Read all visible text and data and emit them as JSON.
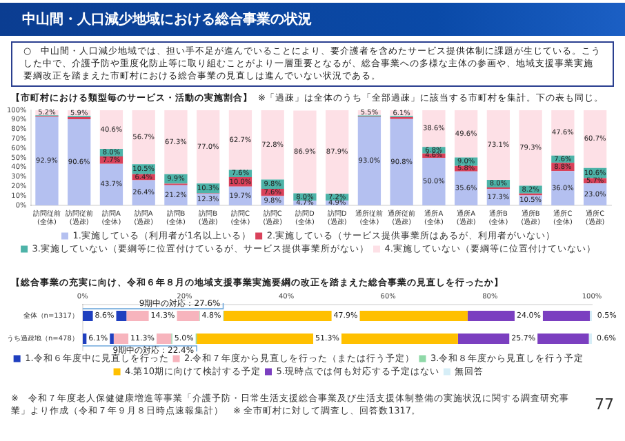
{
  "chart_data": [
    {
      "type": "other",
      "title": "中山間・人口減少地域における総合事業の状況",
      "annotations": [
        "○　中山間・人口減少地域では、担い手不足が進んでいることにより、要介護者を含めたサービス提供体制に課題が生じている。こうした中で、介護予防や重度化防止等に取り組むことがより一層重要となるが、総合事業への多様な主体の参画や、地域支援事業実施要綱改正を踏まえた市町村における総合事業の見直しは進んでいない状況である。"
      ]
    },
    {
      "type": "bar",
      "stacked": true,
      "title": "【市町村における類型毎のサービス・活動の実施割合】",
      "subtitle": "※「過疎」は全体のうち「全部過疎」に該当する市町村を集計。下の表も同じ。",
      "categories": [
        "訪問従前\n(全体)",
        "訪問従前\n(過疎)",
        "訪問A\n(全体)",
        "訪問A\n(過疎)",
        "訪問B\n(全体)",
        "訪問B\n(過疎)",
        "訪問C\n(全体)",
        "訪問C\n(過疎)",
        "訪問D\n(全体)",
        "訪問D\n(過疎)",
        "通所従前\n(全体)",
        "通所従前\n(過疎)",
        "通所A\n(全体)",
        "通所A\n(過疎)",
        "通所B\n(全体)",
        "通所B\n(過疎)",
        "通所C\n(全体)",
        "通所C\n(過疎)"
      ],
      "series": [
        {
          "name": "1.実施している（利用者が1名以上いる）",
          "color": "#b4c0f0",
          "values": [
            92.9,
            90.6,
            43.7,
            26.4,
            21.2,
            12.3,
            19.7,
            9.8,
            4.7,
            4.9,
            93.0,
            90.8,
            50.0,
            35.6,
            17.3,
            10.5,
            36.0,
            23.0
          ],
          "value_labels": [
            "92.9%",
            "90.6%",
            "43.7%",
            "26.4%",
            "21.2%",
            "12.3%",
            "19.7%",
            "9.8%",
            "4.7%",
            "4.9%",
            "93.0%",
            "90.8%",
            "50.0%",
            "35.6%",
            "17.3%",
            "10.5%",
            "36.0%",
            "23.0%"
          ]
        },
        {
          "name": "2.実施している（サービス提供事業所はあるが、利用者がいない）",
          "color": "#d9415a",
          "values": [
            1.0,
            2.2,
            7.7,
            6.4,
            1.6,
            0.4,
            10.0,
            7.6,
            null,
            0.0,
            0.5,
            2.0,
            4.6,
            5.8,
            1.6,
            2.0,
            8.8,
            5.7
          ],
          "value_labels": [
            null,
            null,
            "7.7%",
            "6.4%",
            null,
            null,
            "10.0%",
            "7.6%",
            null,
            null,
            null,
            null,
            "4.6%",
            "5.8%",
            null,
            null,
            "8.8%",
            "5.7%"
          ]
        },
        {
          "name": "3.実施していない（要綱等に位置付けているが、サービス提供事業所がない）",
          "color": "#4db3a8",
          "values": [
            0.9,
            1.3,
            8.0,
            10.5,
            9.9,
            10.3,
            7.6,
            9.8,
            8.0,
            7.2,
            1.0,
            1.1,
            6.8,
            9.0,
            8.0,
            8.2,
            7.6,
            10.6
          ],
          "value_labels": [
            null,
            null,
            "8.0%",
            "10.5%",
            "9.9%",
            "10.3%",
            "7.6%",
            "9.8%",
            "8.0%",
            "7.2%",
            null,
            null,
            "6.8%",
            "9.0%",
            "8.0%",
            "8.2%",
            "7.6%",
            "10.6%"
          ]
        },
        {
          "name": "4.実施していない（要綱等に位置付けていない）",
          "color": "#fde0e6",
          "values": [
            5.2,
            5.9,
            40.6,
            56.7,
            67.3,
            77.0,
            62.7,
            72.8,
            86.9,
            87.9,
            5.5,
            6.1,
            38.6,
            49.6,
            73.1,
            79.3,
            47.6,
            60.7
          ],
          "value_labels": [
            "5.2%",
            "5.9%",
            "40.6%",
            "56.7%",
            "67.3%",
            "77.0%",
            "62.7%",
            "72.8%",
            "86.9%",
            "87.9%",
            "5.5%",
            "6.1%",
            "38.6%",
            "49.6%",
            "73.1%",
            "79.3%",
            "47.6%",
            "60.7%"
          ]
        }
      ],
      "ylim": [
        0,
        100
      ],
      "yticks": [
        {
          "value": 0,
          "label": "0%"
        },
        {
          "value": 10,
          "label": "10%"
        },
        {
          "value": 20,
          "label": "20%"
        },
        {
          "value": 30,
          "label": "30%"
        },
        {
          "value": 40,
          "label": "40%"
        },
        {
          "value": 50,
          "label": "50%"
        },
        {
          "value": 60,
          "label": "60%"
        },
        {
          "value": 70,
          "label": "70%"
        },
        {
          "value": 80,
          "label": "80%"
        },
        {
          "value": 90,
          "label": "90%"
        },
        {
          "value": 100,
          "label": "100%"
        }
      ],
      "legend": "bottom"
    },
    {
      "type": "bar",
      "stacked": true,
      "orientation": "horizontal",
      "title": "【総合事業の充実に向け、令和６年８月の地域支援事業実施要綱の改正を踏まえた総合事業の見直しを行ったか】",
      "categories": [
        "全体（n=1317）",
        "うち過疎地（n=478）"
      ],
      "series": [
        {
          "name": "1.令和６年度中に見直しを行った",
          "color": "#1f3fbf",
          "values": [
            8.6,
            6.1
          ],
          "value_labels": [
            "8.6%",
            "6.1%"
          ]
        },
        {
          "name": "2.令和７年度から見直しを行った（または行う予定）",
          "color": "#f7b4bd",
          "values": [
            14.3,
            11.3
          ],
          "value_labels": [
            "14.3%",
            "11.3%"
          ]
        },
        {
          "name": "3.令和８年度から見直しを行う予定",
          "color": "#8fd9a8",
          "values": [
            4.8,
            5.0
          ],
          "value_labels": [
            "4.8%",
            "5.0%"
          ]
        },
        {
          "name": "4.第10期に向けて検討する予定",
          "color": "#ffc000",
          "values": [
            47.9,
            51.3
          ],
          "value_labels": [
            "47.9%",
            "51.3%"
          ]
        },
        {
          "name": "5.現時点では何も対応する予定はない",
          "color": "#7b3fc0",
          "values": [
            24.0,
            25.7
          ],
          "value_labels": [
            "24.0%",
            "25.7%"
          ]
        },
        {
          "name": "無回答",
          "color": "#d6eef7",
          "values": [
            0.5,
            0.6
          ],
          "value_labels": [
            "0.5%",
            "0.6%"
          ]
        }
      ],
      "xlim": [
        0,
        100
      ],
      "xticks": [
        {
          "value": 0,
          "label": "0%"
        },
        {
          "value": 20,
          "label": "20%"
        },
        {
          "value": 40,
          "label": "40%"
        },
        {
          "value": 60,
          "label": "60%"
        },
        {
          "value": 80,
          "label": "80%"
        },
        {
          "value": 100,
          "label": "100%"
        }
      ],
      "legend": "bottom",
      "annotations": [
        {
          "text": "9期中の対応：27.6%",
          "x": 27.6,
          "y": "全体（n=1317）"
        },
        {
          "text": "9期中の対応：22.4%",
          "x": 22.4,
          "y": "うち過疎地（n=478）"
        },
        "※　令和７年度老人保健健康増進等事業「介護予防・日常生活支援総合事業及び生活支援体制整備の実施状況に関する調査研究事業」より作成（令和７年９月８日時点速報集計）　※ 全市町村に対して調査し、回答数1317。",
        "77"
      ]
    }
  ]
}
